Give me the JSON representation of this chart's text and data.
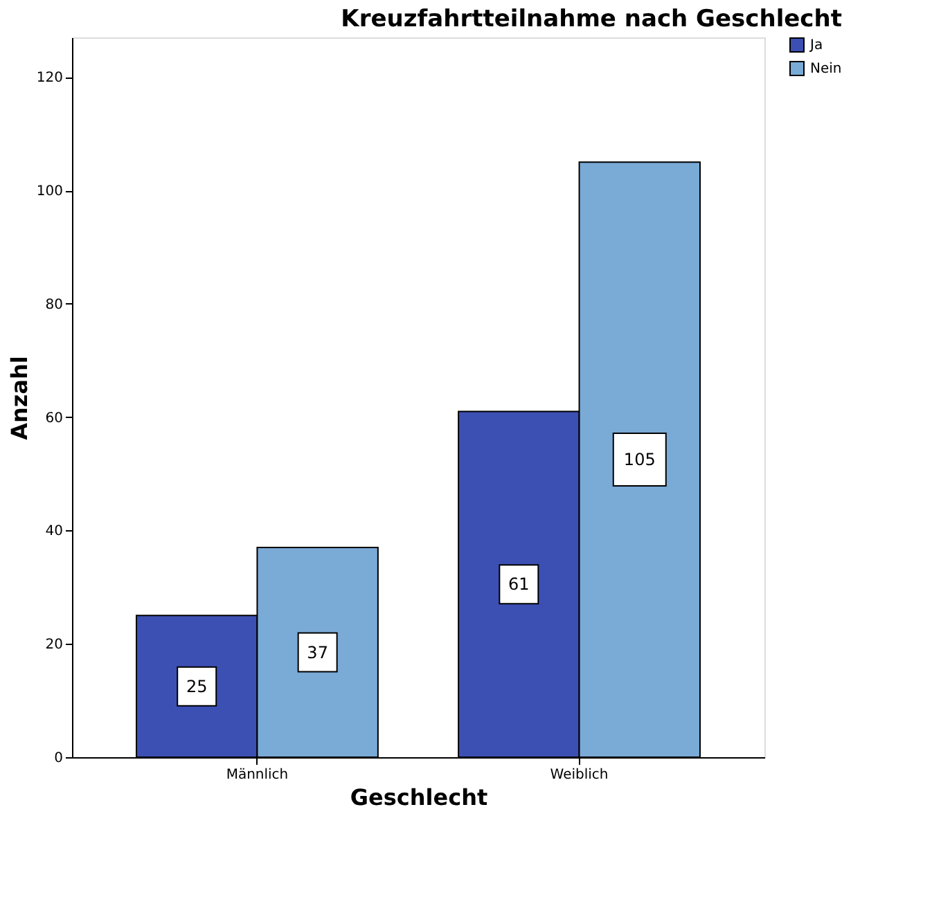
{
  "chart_data": {
    "type": "bar",
    "title": "Kreuzfahrtteilnahme nach Geschlecht",
    "xlabel": "Geschlecht",
    "ylabel": "Anzahl",
    "categories": [
      "Männlich",
      "Weiblich"
    ],
    "series": [
      {
        "name": "Ja",
        "color": "#3c50b4",
        "values": [
          25,
          61
        ]
      },
      {
        "name": "Nein",
        "color": "#7aaad6",
        "values": [
          37,
          105
        ]
      }
    ],
    "ylim": [
      0,
      127
    ],
    "yticks": [
      0,
      20,
      40,
      60,
      80,
      100,
      120
    ],
    "grid": false,
    "legend": "top right",
    "data_labels": true
  }
}
